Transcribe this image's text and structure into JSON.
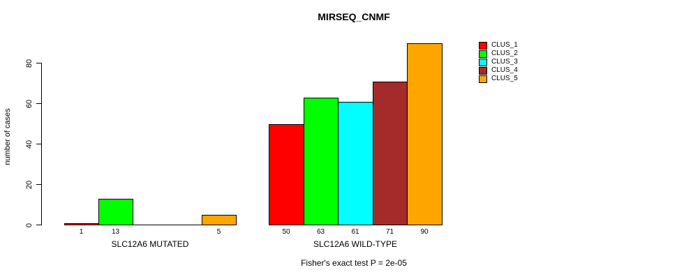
{
  "chart_data": {
    "type": "bar",
    "title": "MIRSEQ_CNMF",
    "ylabel": "number of cases",
    "xlabel": "",
    "ylim": [
      0,
      90
    ],
    "yticks": [
      0,
      20,
      40,
      60,
      80
    ],
    "grid": false,
    "legend_position": "right-outside",
    "categories": [
      "SLC12A6 MUTATED",
      "SLC12A6 WILD-TYPE"
    ],
    "series": [
      {
        "name": "CLUS_1",
        "color": "#FF0000",
        "values": [
          1,
          50
        ]
      },
      {
        "name": "CLUS_2",
        "color": "#00FF00",
        "values": [
          13,
          63
        ]
      },
      {
        "name": "CLUS_3",
        "color": "#00FFFF",
        "values": [
          0,
          61
        ]
      },
      {
        "name": "CLUS_4",
        "color": "#A52A2A",
        "values": [
          0,
          71
        ]
      },
      {
        "name": "CLUS_5",
        "color": "#FFA500",
        "values": [
          5,
          90
        ]
      }
    ],
    "bar_value_labels_shown": [
      "1",
      "13",
      "5",
      "50",
      "63",
      "61",
      "71",
      "90"
    ],
    "footnote": "Fisher's exact test P = 2e-05"
  }
}
